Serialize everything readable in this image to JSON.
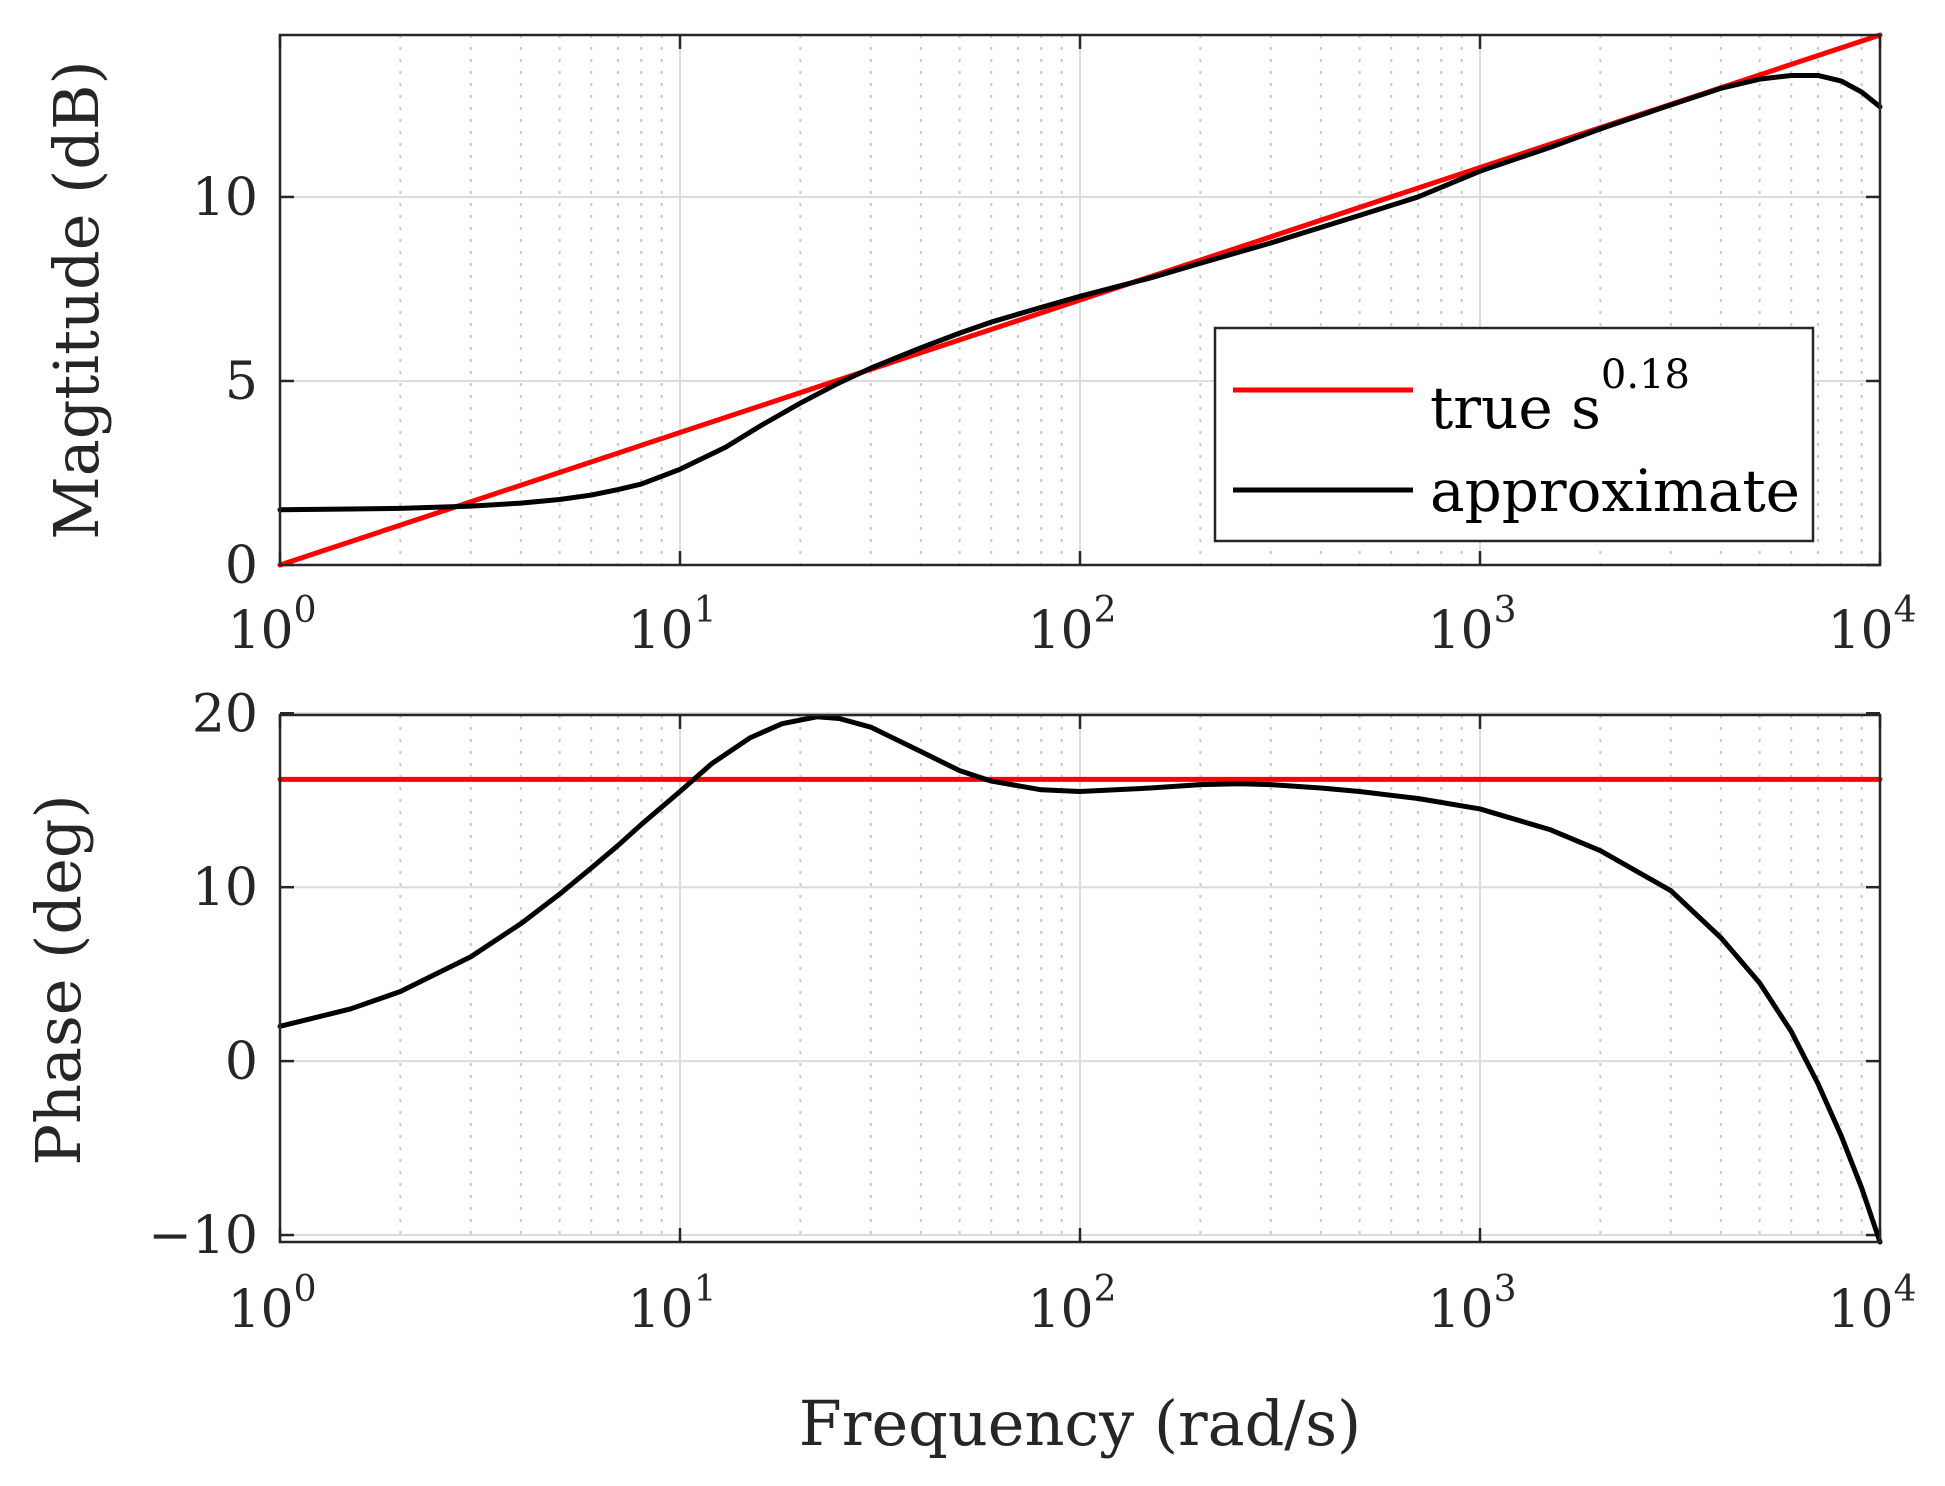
{
  "chart_data": [
    {
      "type": "line",
      "id": "magnitude",
      "title": "",
      "xlabel": "",
      "ylabel": "Magtitude (dB)",
      "xscale": "log",
      "xlim": [
        1,
        10000
      ],
      "ylim": [
        0,
        14.4
      ],
      "yticks": [
        0,
        5,
        10
      ],
      "ytick_labels": [
        "0",
        "5",
        "10"
      ],
      "xticks": [
        1,
        10,
        100,
        1000,
        10000
      ],
      "xtick_labels": [
        {
          "base": "10",
          "exp": "0"
        },
        {
          "base": "10",
          "exp": "1"
        },
        {
          "base": "10",
          "exp": "2"
        },
        {
          "base": "10",
          "exp": "3"
        },
        {
          "base": "10",
          "exp": "4"
        }
      ],
      "grid": true,
      "legend": {
        "position": "lower-right",
        "entries": [
          {
            "text": "true s",
            "exp": "0.18",
            "color": "#ff0000"
          },
          {
            "text": "approximate",
            "exp": "",
            "color": "#000000"
          }
        ]
      },
      "series": [
        {
          "name": "true s^0.18",
          "color": "#ff0000",
          "x": [
            1,
            10000
          ],
          "y": [
            0,
            14.4
          ]
        },
        {
          "name": "approximate",
          "color": "#000000",
          "x": [
            1,
            1.5,
            2,
            3,
            4,
            5,
            6,
            7,
            8,
            10,
            13,
            16,
            20,
            25,
            30,
            40,
            50,
            60,
            80,
            100,
            150,
            200,
            300,
            500,
            700,
            1000,
            1500,
            2000,
            3000,
            4000,
            5000,
            6000,
            7000,
            8000,
            9000,
            10000
          ],
          "y": [
            1.5,
            1.52,
            1.54,
            1.6,
            1.68,
            1.78,
            1.9,
            2.05,
            2.2,
            2.6,
            3.2,
            3.8,
            4.4,
            4.95,
            5.35,
            5.9,
            6.3,
            6.6,
            7.0,
            7.3,
            7.8,
            8.2,
            8.75,
            9.5,
            10.0,
            10.7,
            11.35,
            11.85,
            12.5,
            12.95,
            13.2,
            13.3,
            13.3,
            13.15,
            12.85,
            12.45
          ]
        }
      ]
    },
    {
      "type": "line",
      "id": "phase",
      "title": "",
      "xlabel": "Frequency (rad/s)",
      "ylabel": "Phase (deg)",
      "xscale": "log",
      "xlim": [
        1,
        10000
      ],
      "ylim": [
        -10.4,
        19.9
      ],
      "yticks": [
        -10,
        0,
        10,
        20
      ],
      "ytick_labels": [
        "−10",
        "0",
        "10",
        "20"
      ],
      "xticks": [
        1,
        10,
        100,
        1000,
        10000
      ],
      "xtick_labels": [
        {
          "base": "10",
          "exp": "0"
        },
        {
          "base": "10",
          "exp": "1"
        },
        {
          "base": "10",
          "exp": "2"
        },
        {
          "base": "10",
          "exp": "3"
        },
        {
          "base": "10",
          "exp": "4"
        }
      ],
      "grid": true,
      "series": [
        {
          "name": "true s^0.18",
          "color": "#ff0000",
          "x": [
            1,
            10000
          ],
          "y": [
            16.2,
            16.2
          ]
        },
        {
          "name": "approximate",
          "color": "#000000",
          "x": [
            1,
            1.5,
            2,
            3,
            4,
            5,
            6,
            7,
            8,
            10,
            12,
            15,
            18,
            22,
            25,
            30,
            40,
            50,
            60,
            80,
            100,
            150,
            200,
            250,
            300,
            400,
            500,
            700,
            1000,
            1500,
            2000,
            3000,
            4000,
            5000,
            6000,
            7000,
            8000,
            9000,
            10000
          ],
          "y": [
            2.0,
            3.0,
            4.0,
            6.0,
            7.9,
            9.6,
            11.1,
            12.4,
            13.6,
            15.5,
            17.1,
            18.6,
            19.4,
            19.8,
            19.7,
            19.2,
            17.8,
            16.7,
            16.1,
            15.6,
            15.5,
            15.7,
            15.9,
            15.95,
            15.9,
            15.7,
            15.5,
            15.1,
            14.5,
            13.3,
            12.1,
            9.8,
            7.1,
            4.5,
            1.7,
            -1.3,
            -4.3,
            -7.3,
            -10.4
          ]
        }
      ]
    }
  ]
}
